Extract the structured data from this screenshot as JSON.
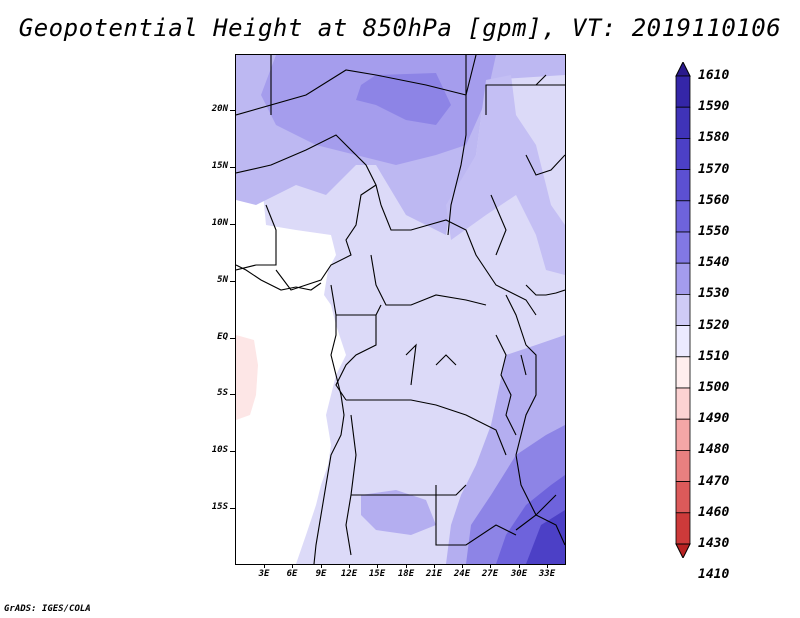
{
  "title": "Geopotential Height at 850hPa [gpm], VT: 2019110106",
  "footer": "GrADS: IGES/COLA",
  "map": {
    "lat_labels": [
      "20N",
      "15N",
      "10N",
      "5N",
      "EQ",
      "5S",
      "10S",
      "15S"
    ],
    "lon_labels": [
      "3E",
      "6E",
      "9E",
      "12E",
      "15E",
      "18E",
      "21E",
      "24E",
      "27E",
      "30E",
      "33E"
    ]
  },
  "colorbar": {
    "levels": [
      "1610",
      "1590",
      "1580",
      "1570",
      "1560",
      "1550",
      "1540",
      "1530",
      "1520",
      "1510",
      "1500",
      "1490",
      "1480",
      "1470",
      "1460",
      "1430",
      "1410"
    ],
    "colors": [
      "#2a1a8c",
      "#3426a8",
      "#3f33b8",
      "#4c40c6",
      "#5c50d2",
      "#6e63dc",
      "#8278e4",
      "#a49ced",
      "#cfcbf6",
      "#eceaff",
      "#ffeeee",
      "#fcd2d2",
      "#f4a6a6",
      "#e88080",
      "#dc5a5a",
      "#cd3a3a",
      "#b82222"
    ]
  }
}
